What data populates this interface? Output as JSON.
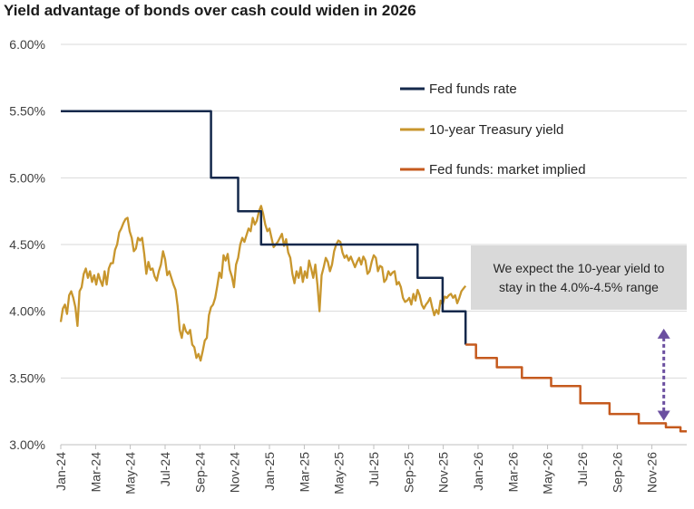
{
  "chart_data": {
    "type": "line",
    "title": "Yield advantage of bonds over cash could widen in 2026",
    "xlabel": "",
    "ylabel": "",
    "x_range": [
      2024.0,
      2027.0
    ],
    "ylim": [
      3.0,
      6.0
    ],
    "y_ticks": [
      3.0,
      3.5,
      4.0,
      4.5,
      5.0,
      5.5,
      6.0
    ],
    "y_tick_labels": [
      "3.00%",
      "3.50%",
      "4.00%",
      "4.50%",
      "5.00%",
      "5.50%",
      "6.00%"
    ],
    "x_ticks": [
      {
        "label": "Jan-24",
        "x": 2024.0
      },
      {
        "label": "Mar-24",
        "x": 2024.167
      },
      {
        "label": "May-24",
        "x": 2024.333
      },
      {
        "label": "Jul-24",
        "x": 2024.5
      },
      {
        "label": "Sep-24",
        "x": 2024.667
      },
      {
        "label": "Nov-24",
        "x": 2024.833
      },
      {
        "label": "Jan-25",
        "x": 2025.0
      },
      {
        "label": "Mar-25",
        "x": 2025.167
      },
      {
        "label": "May-25",
        "x": 2025.333
      },
      {
        "label": "Jul-25",
        "x": 2025.5
      },
      {
        "label": "Sep-25",
        "x": 2025.667
      },
      {
        "label": "Nov-25",
        "x": 2025.833
      },
      {
        "label": "Jan-26",
        "x": 2026.0
      },
      {
        "label": "Mar-26",
        "x": 2026.167
      },
      {
        "label": "May-26",
        "x": 2026.333
      },
      {
        "label": "Jul-26",
        "x": 2026.5
      },
      {
        "label": "Sep-26",
        "x": 2026.667
      },
      {
        "label": "Nov-26",
        "x": 2026.833
      }
    ],
    "series": [
      {
        "name": "Fed funds rate",
        "color": "#14284b",
        "style": "step",
        "points": [
          [
            2024.0,
            5.5
          ],
          [
            2024.72,
            5.5
          ],
          [
            2024.72,
            5.0
          ],
          [
            2024.85,
            5.0
          ],
          [
            2024.85,
            4.75
          ],
          [
            2024.96,
            4.75
          ],
          [
            2024.96,
            4.5
          ],
          [
            2025.71,
            4.5
          ],
          [
            2025.71,
            4.25
          ],
          [
            2025.83,
            4.25
          ],
          [
            2025.83,
            4.0
          ],
          [
            2025.94,
            4.0
          ],
          [
            2025.94,
            3.75
          ]
        ]
      },
      {
        "name": "10-year Treasury yield",
        "color": "#c8962d",
        "style": "line",
        "points": [
          [
            2024.0,
            3.92
          ],
          [
            2024.01,
            4.02
          ],
          [
            2024.02,
            4.05
          ],
          [
            2024.03,
            3.98
          ],
          [
            2024.04,
            4.12
          ],
          [
            2024.05,
            4.15
          ],
          [
            2024.06,
            4.1
          ],
          [
            2024.07,
            4.03
          ],
          [
            2024.08,
            3.89
          ],
          [
            2024.09,
            4.15
          ],
          [
            2024.1,
            4.18
          ],
          [
            2024.11,
            4.28
          ],
          [
            2024.12,
            4.32
          ],
          [
            2024.13,
            4.25
          ],
          [
            2024.14,
            4.3
          ],
          [
            2024.15,
            4.22
          ],
          [
            2024.16,
            4.27
          ],
          [
            2024.17,
            4.2
          ],
          [
            2024.18,
            4.28
          ],
          [
            2024.19,
            4.23
          ],
          [
            2024.2,
            4.19
          ],
          [
            2024.21,
            4.3
          ],
          [
            2024.22,
            4.2
          ],
          [
            2024.23,
            4.32
          ],
          [
            2024.24,
            4.36
          ],
          [
            2024.25,
            4.36
          ],
          [
            2024.26,
            4.46
          ],
          [
            2024.27,
            4.5
          ],
          [
            2024.28,
            4.59
          ],
          [
            2024.29,
            4.62
          ],
          [
            2024.3,
            4.66
          ],
          [
            2024.31,
            4.69
          ],
          [
            2024.32,
            4.7
          ],
          [
            2024.33,
            4.6
          ],
          [
            2024.34,
            4.55
          ],
          [
            2024.35,
            4.45
          ],
          [
            2024.36,
            4.47
          ],
          [
            2024.37,
            4.55
          ],
          [
            2024.38,
            4.53
          ],
          [
            2024.39,
            4.55
          ],
          [
            2024.4,
            4.43
          ],
          [
            2024.41,
            4.28
          ],
          [
            2024.42,
            4.37
          ],
          [
            2024.43,
            4.31
          ],
          [
            2024.44,
            4.32
          ],
          [
            2024.45,
            4.26
          ],
          [
            2024.46,
            4.23
          ],
          [
            2024.47,
            4.3
          ],
          [
            2024.48,
            4.35
          ],
          [
            2024.49,
            4.45
          ],
          [
            2024.5,
            4.39
          ],
          [
            2024.51,
            4.27
          ],
          [
            2024.52,
            4.3
          ],
          [
            2024.53,
            4.25
          ],
          [
            2024.54,
            4.2
          ],
          [
            2024.55,
            4.16
          ],
          [
            2024.56,
            4.04
          ],
          [
            2024.57,
            3.86
          ],
          [
            2024.58,
            3.8
          ],
          [
            2024.59,
            3.9
          ],
          [
            2024.6,
            3.85
          ],
          [
            2024.61,
            3.83
          ],
          [
            2024.62,
            3.86
          ],
          [
            2024.63,
            3.75
          ],
          [
            2024.64,
            3.73
          ],
          [
            2024.65,
            3.65
          ],
          [
            2024.66,
            3.68
          ],
          [
            2024.67,
            3.63
          ],
          [
            2024.68,
            3.7
          ],
          [
            2024.69,
            3.78
          ],
          [
            2024.7,
            3.8
          ],
          [
            2024.71,
            3.97
          ],
          [
            2024.72,
            4.03
          ],
          [
            2024.73,
            4.05
          ],
          [
            2024.74,
            4.1
          ],
          [
            2024.75,
            4.19
          ],
          [
            2024.76,
            4.29
          ],
          [
            2024.77,
            4.25
          ],
          [
            2024.78,
            4.42
          ],
          [
            2024.79,
            4.38
          ],
          [
            2024.8,
            4.43
          ],
          [
            2024.81,
            4.31
          ],
          [
            2024.82,
            4.26
          ],
          [
            2024.83,
            4.18
          ],
          [
            2024.84,
            4.35
          ],
          [
            2024.85,
            4.4
          ],
          [
            2024.86,
            4.5
          ],
          [
            2024.87,
            4.55
          ],
          [
            2024.88,
            4.52
          ],
          [
            2024.89,
            4.57
          ],
          [
            2024.9,
            4.62
          ],
          [
            2024.91,
            4.6
          ],
          [
            2024.92,
            4.7
          ],
          [
            2024.93,
            4.65
          ],
          [
            2024.94,
            4.68
          ],
          [
            2024.95,
            4.75
          ],
          [
            2024.96,
            4.79
          ],
          [
            2024.97,
            4.73
          ],
          [
            2024.98,
            4.65
          ],
          [
            2024.99,
            4.6
          ],
          [
            2025.0,
            4.62
          ],
          [
            2025.01,
            4.55
          ],
          [
            2025.02,
            4.48
          ],
          [
            2025.03,
            4.5
          ],
          [
            2025.04,
            4.52
          ],
          [
            2025.05,
            4.55
          ],
          [
            2025.06,
            4.58
          ],
          [
            2025.07,
            4.49
          ],
          [
            2025.08,
            4.54
          ],
          [
            2025.09,
            4.44
          ],
          [
            2025.1,
            4.4
          ],
          [
            2025.11,
            4.28
          ],
          [
            2025.12,
            4.21
          ],
          [
            2025.13,
            4.3
          ],
          [
            2025.14,
            4.25
          ],
          [
            2025.15,
            4.33
          ],
          [
            2025.16,
            4.22
          ],
          [
            2025.17,
            4.3
          ],
          [
            2025.18,
            4.25
          ],
          [
            2025.19,
            4.38
          ],
          [
            2025.2,
            4.32
          ],
          [
            2025.21,
            4.25
          ],
          [
            2025.22,
            4.35
          ],
          [
            2025.23,
            4.2
          ],
          [
            2025.24,
            4.0
          ],
          [
            2025.25,
            4.27
          ],
          [
            2025.26,
            4.33
          ],
          [
            2025.27,
            4.4
          ],
          [
            2025.28,
            4.37
          ],
          [
            2025.29,
            4.3
          ],
          [
            2025.3,
            4.35
          ],
          [
            2025.31,
            4.45
          ],
          [
            2025.32,
            4.5
          ],
          [
            2025.33,
            4.53
          ],
          [
            2025.34,
            4.52
          ],
          [
            2025.35,
            4.44
          ],
          [
            2025.36,
            4.4
          ],
          [
            2025.37,
            4.42
          ],
          [
            2025.38,
            4.38
          ],
          [
            2025.39,
            4.41
          ],
          [
            2025.4,
            4.37
          ],
          [
            2025.41,
            4.33
          ],
          [
            2025.42,
            4.37
          ],
          [
            2025.43,
            4.4
          ],
          [
            2025.44,
            4.35
          ],
          [
            2025.45,
            4.41
          ],
          [
            2025.46,
            4.38
          ],
          [
            2025.47,
            4.28
          ],
          [
            2025.48,
            4.3
          ],
          [
            2025.49,
            4.37
          ],
          [
            2025.5,
            4.42
          ],
          [
            2025.51,
            4.4
          ],
          [
            2025.52,
            4.3
          ],
          [
            2025.53,
            4.34
          ],
          [
            2025.54,
            4.33
          ],
          [
            2025.55,
            4.22
          ],
          [
            2025.56,
            4.24
          ],
          [
            2025.57,
            4.3
          ],
          [
            2025.58,
            4.27
          ],
          [
            2025.59,
            4.29
          ],
          [
            2025.6,
            4.3
          ],
          [
            2025.61,
            4.2
          ],
          [
            2025.62,
            4.22
          ],
          [
            2025.63,
            4.18
          ],
          [
            2025.64,
            4.1
          ],
          [
            2025.65,
            4.07
          ],
          [
            2025.66,
            4.08
          ],
          [
            2025.67,
            4.1
          ],
          [
            2025.68,
            4.05
          ],
          [
            2025.69,
            4.13
          ],
          [
            2025.7,
            4.08
          ],
          [
            2025.71,
            4.16
          ],
          [
            2025.72,
            4.12
          ],
          [
            2025.73,
            4.05
          ],
          [
            2025.74,
            4.02
          ],
          [
            2025.75,
            4.05
          ],
          [
            2025.76,
            4.07
          ],
          [
            2025.77,
            4.1
          ],
          [
            2025.78,
            4.03
          ],
          [
            2025.79,
            3.97
          ],
          [
            2025.8,
            4.01
          ],
          [
            2025.81,
            3.98
          ],
          [
            2025.82,
            4.08
          ],
          [
            2025.83,
            4.05
          ],
          [
            2025.84,
            4.11
          ],
          [
            2025.85,
            4.1
          ],
          [
            2025.86,
            4.12
          ],
          [
            2025.87,
            4.13
          ],
          [
            2025.88,
            4.1
          ],
          [
            2025.89,
            4.12
          ],
          [
            2025.9,
            4.06
          ],
          [
            2025.91,
            4.1
          ],
          [
            2025.92,
            4.15
          ],
          [
            2025.93,
            4.17
          ],
          [
            2025.94,
            4.19
          ]
        ]
      },
      {
        "name": "Fed funds: market implied",
        "color": "#c55a1e",
        "style": "step",
        "points": [
          [
            2025.94,
            3.75
          ],
          [
            2025.99,
            3.75
          ],
          [
            2025.99,
            3.65
          ],
          [
            2026.09,
            3.65
          ],
          [
            2026.09,
            3.58
          ],
          [
            2026.21,
            3.58
          ],
          [
            2026.21,
            3.5
          ],
          [
            2026.35,
            3.5
          ],
          [
            2026.35,
            3.44
          ],
          [
            2026.49,
            3.44
          ],
          [
            2026.49,
            3.31
          ],
          [
            2026.63,
            3.31
          ],
          [
            2026.63,
            3.23
          ],
          [
            2026.77,
            3.23
          ],
          [
            2026.77,
            3.16
          ],
          [
            2026.9,
            3.16
          ],
          [
            2026.9,
            3.13
          ],
          [
            2026.97,
            3.13
          ],
          [
            2026.97,
            3.1
          ],
          [
            2027.0,
            3.1
          ]
        ]
      }
    ],
    "legend": [
      {
        "label": "Fed funds rate",
        "color": "#14284b"
      },
      {
        "label": "10-year Treasury yield",
        "color": "#c8962d"
      },
      {
        "label": "Fed funds: market implied",
        "color": "#c55a1e"
      }
    ],
    "annotation": {
      "lines": [
        "We expect the 10-year yield to",
        "stay in the 4.0%-4.5% range"
      ],
      "arrow": {
        "x": 2026.89,
        "y_top": 3.87,
        "y_bottom": 3.18,
        "color": "#6b4fa0"
      }
    }
  }
}
